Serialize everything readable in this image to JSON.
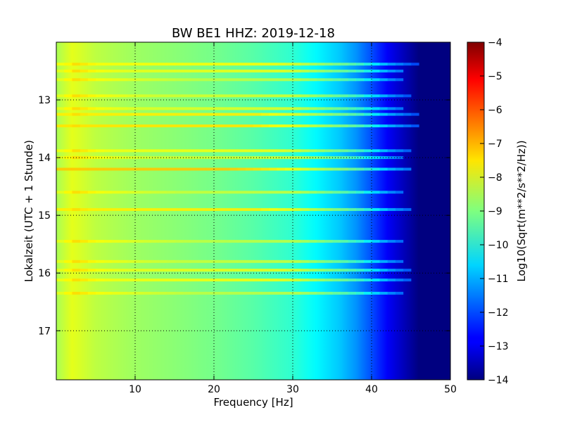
{
  "chart_data": {
    "type": "heatmap",
    "title": "BW BE1 HHZ: 2019-12-18",
    "xlabel": "Frequency [Hz]",
    "ylabel": "Lokalzeit (UTC + 1 Stunde)",
    "xlim": [
      0,
      50
    ],
    "ylim": [
      12.0,
      17.85
    ],
    "y_inverted": true,
    "x_ticks": [
      10,
      20,
      30,
      40,
      50
    ],
    "y_ticks": [
      13,
      14,
      15,
      16,
      17
    ],
    "grid": true,
    "colorbar": {
      "label": "Log10(Sqrt(m**2/s**2/Hz))",
      "range": [
        -14,
        -4
      ],
      "ticks": [
        -4,
        -5,
        -6,
        -7,
        -8,
        -9,
        -10,
        -11,
        -12,
        -13,
        -14
      ],
      "colormap": "jet"
    },
    "spectrum_profile": [
      {
        "f": 0,
        "v": -8.6
      },
      {
        "f": 2,
        "v": -8.0
      },
      {
        "f": 5,
        "v": -8.4
      },
      {
        "f": 10,
        "v": -8.7
      },
      {
        "f": 15,
        "v": -8.9
      },
      {
        "f": 20,
        "v": -9.1
      },
      {
        "f": 25,
        "v": -9.4
      },
      {
        "f": 30,
        "v": -9.8
      },
      {
        "f": 33,
        "v": -10.3
      },
      {
        "f": 36,
        "v": -10.8
      },
      {
        "f": 38,
        "v": -11.3
      },
      {
        "f": 40,
        "v": -12.0
      },
      {
        "f": 42,
        "v": -12.8
      },
      {
        "f": 44,
        "v": -13.4
      },
      {
        "f": 46,
        "v": -14.0
      },
      {
        "f": 50,
        "v": -14.0
      }
    ],
    "bands": [
      {
        "t": 12.38,
        "level": -7.8,
        "f_max": 46
      },
      {
        "t": 12.5,
        "level": -8.0,
        "f_max": 44
      },
      {
        "t": 12.65,
        "level": -8.4,
        "f_max": 44
      },
      {
        "t": 12.93,
        "level": -8.2,
        "f_max": 45
      },
      {
        "t": 13.15,
        "level": -8.1,
        "f_max": 44
      },
      {
        "t": 13.25,
        "level": -7.6,
        "f_max": 46
      },
      {
        "t": 13.45,
        "level": -7.5,
        "f_max": 46
      },
      {
        "t": 13.88,
        "level": -7.9,
        "f_max": 45
      },
      {
        "t": 14.0,
        "level": -8.2,
        "f_max": 44
      },
      {
        "t": 14.2,
        "level": -7.2,
        "f_max": 45
      },
      {
        "t": 14.6,
        "level": -8.3,
        "f_max": 44
      },
      {
        "t": 14.9,
        "level": -7.6,
        "f_max": 45
      },
      {
        "t": 15.45,
        "level": -8.4,
        "f_max": 44
      },
      {
        "t": 15.8,
        "level": -8.3,
        "f_max": 44
      },
      {
        "t": 15.95,
        "level": -8.0,
        "f_max": 45
      },
      {
        "t": 16.12,
        "level": -7.9,
        "f_max": 45
      },
      {
        "t": 16.35,
        "level": -8.4,
        "f_max": 44
      }
    ]
  }
}
